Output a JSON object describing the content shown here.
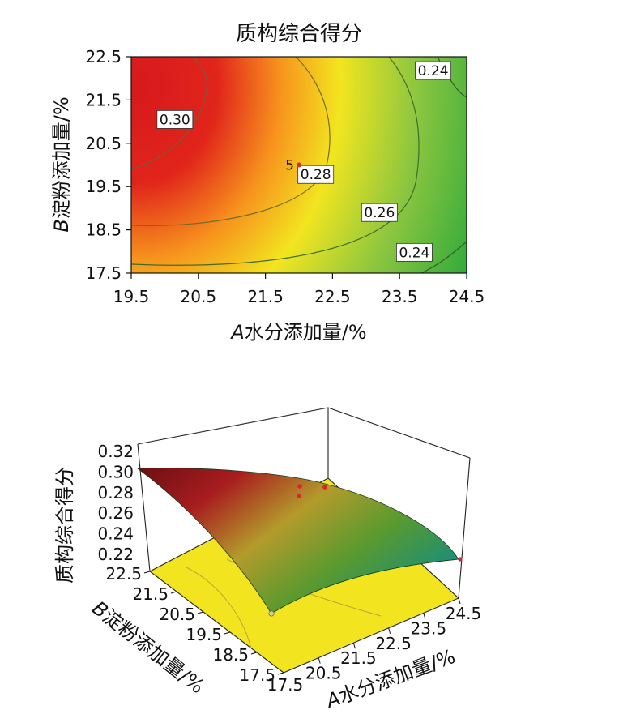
{
  "chart_data": [
    {
      "type": "heatmap",
      "subtype": "contour",
      "title": "质构综合得分",
      "xlabel_var": "A",
      "xlabel_text": "水分添加量/%",
      "ylabel_var": "B",
      "ylabel_text": "淀粉添加量/%",
      "xlim": [
        19.5,
        24.5
      ],
      "ylim": [
        17.5,
        22.5
      ],
      "x_ticks": [
        "19.5",
        "20.5",
        "21.5",
        "22.5",
        "23.5",
        "24.5"
      ],
      "y_ticks": [
        "17.5",
        "18.5",
        "19.5",
        "20.5",
        "21.5",
        "22.5"
      ],
      "contour_labels": [
        {
          "text": "0.30",
          "x": 20.15,
          "y": 21.05
        },
        {
          "text": "0.28",
          "x": 22.25,
          "y": 19.78
        },
        {
          "text": "0.26",
          "x": 23.2,
          "y": 18.9
        },
        {
          "text": "0.24",
          "x": 24.0,
          "y": 22.18
        },
        {
          "text": "0.24",
          "x": 23.72,
          "y": 17.98
        }
      ],
      "center_point": {
        "label": "5",
        "x": 22.0,
        "y": 20.0
      },
      "colormap": [
        "#2aa7e0",
        "#2ba83c",
        "#8cc63f",
        "#f2e51f",
        "#f7941d",
        "#e1251b",
        "#d7191c"
      ]
    },
    {
      "type": "surface",
      "zlabel": "质构综合得分",
      "xlabel_var": "A",
      "xlabel_text": "水分添加量/%",
      "ylabel_var": "B",
      "ylabel_text": "淀粉添加量/%",
      "x_ticks": [
        "20.5",
        "21.5",
        "22.5",
        "23.5",
        "24.5"
      ],
      "x_start_tick": "17.5",
      "y_ticks": [
        "22.5",
        "21.5",
        "20.5",
        "19.5",
        "18.5",
        "17.5"
      ],
      "z_ticks": [
        "0.32",
        "0.30",
        "0.28",
        "0.26",
        "0.24",
        "0.22"
      ],
      "zlim": [
        0.22,
        0.32
      ],
      "floor_color": "#f2e51f"
    }
  ]
}
